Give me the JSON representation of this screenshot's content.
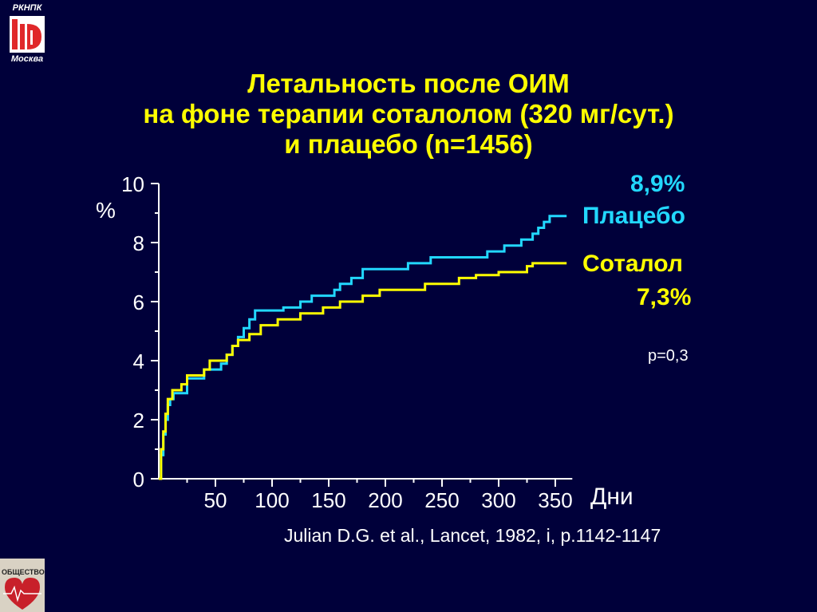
{
  "logos": {
    "top_line1": "РКНПК",
    "top_line2": "Москва",
    "top_icon": "cardiology-center-logo",
    "bottom_icon": "society-emblem-logo",
    "bottom_text": "ОБЩЕСТВО"
  },
  "colors": {
    "background": "#00003a",
    "placebo": "#22d8ff",
    "sotalol": "#ffff00",
    "axis": "#ffffff",
    "title": "#ffff00"
  },
  "title_lines": [
    "Летальность после ОИМ",
    "на фоне терапии соталолом (320 мг/сут.)",
    "и плацебо (n=1456)"
  ],
  "annotations": {
    "placebo_pct": "8,9%",
    "placebo_label": "Плацебо",
    "sotalol_label": "Соталол",
    "sotalol_pct": "7,3%",
    "p_value": "p=0,3"
  },
  "citation": "Julian D.G. et al., Lancet, 1982, i, p.1142-1147",
  "chart_data": {
    "type": "line",
    "title": "",
    "xlabel": "Дни",
    "ylabel": "%",
    "xlim": [
      0,
      365
    ],
    "ylim": [
      0,
      10
    ],
    "x_ticks": [
      50,
      100,
      150,
      200,
      250,
      300,
      350
    ],
    "y_ticks": [
      0,
      2,
      4,
      6,
      8,
      10
    ],
    "x_tick_labels": [
      "50",
      "100",
      "150",
      "200",
      "250",
      "300",
      "350"
    ],
    "y_tick_labels": [
      "0",
      "2",
      "4",
      "6",
      "8",
      "10"
    ],
    "grid": false,
    "step": true,
    "series": [
      {
        "name": "Плацебо",
        "color": "#22d8ff",
        "points": [
          [
            0,
            0
          ],
          [
            2,
            0.8
          ],
          [
            4,
            1.5
          ],
          [
            6,
            2.0
          ],
          [
            8,
            2.5
          ],
          [
            10,
            2.7
          ],
          [
            13,
            2.9
          ],
          [
            25,
            3.4
          ],
          [
            40,
            3.7
          ],
          [
            55,
            3.9
          ],
          [
            60,
            4.2
          ],
          [
            65,
            4.5
          ],
          [
            70,
            4.8
          ],
          [
            75,
            5.1
          ],
          [
            80,
            5.4
          ],
          [
            85,
            5.7
          ],
          [
            110,
            5.8
          ],
          [
            125,
            6.0
          ],
          [
            135,
            6.2
          ],
          [
            155,
            6.4
          ],
          [
            160,
            6.6
          ],
          [
            170,
            6.8
          ],
          [
            180,
            7.1
          ],
          [
            220,
            7.3
          ],
          [
            240,
            7.5
          ],
          [
            290,
            7.7
          ],
          [
            305,
            7.9
          ],
          [
            320,
            8.1
          ],
          [
            330,
            8.3
          ],
          [
            335,
            8.5
          ],
          [
            340,
            8.7
          ],
          [
            345,
            8.9
          ],
          [
            360,
            8.9
          ]
        ]
      },
      {
        "name": "Соталол",
        "color": "#ffff00",
        "points": [
          [
            0,
            0
          ],
          [
            2,
            1.0
          ],
          [
            4,
            1.6
          ],
          [
            6,
            2.2
          ],
          [
            8,
            2.7
          ],
          [
            12,
            3.0
          ],
          [
            20,
            3.2
          ],
          [
            25,
            3.5
          ],
          [
            40,
            3.7
          ],
          [
            45,
            4.0
          ],
          [
            60,
            4.2
          ],
          [
            65,
            4.5
          ],
          [
            70,
            4.7
          ],
          [
            80,
            4.9
          ],
          [
            90,
            5.2
          ],
          [
            105,
            5.4
          ],
          [
            125,
            5.6
          ],
          [
            145,
            5.8
          ],
          [
            160,
            6.0
          ],
          [
            180,
            6.2
          ],
          [
            195,
            6.4
          ],
          [
            235,
            6.6
          ],
          [
            265,
            6.8
          ],
          [
            280,
            6.9
          ],
          [
            300,
            7.0
          ],
          [
            325,
            7.2
          ],
          [
            330,
            7.3
          ],
          [
            360,
            7.3
          ]
        ]
      }
    ]
  }
}
